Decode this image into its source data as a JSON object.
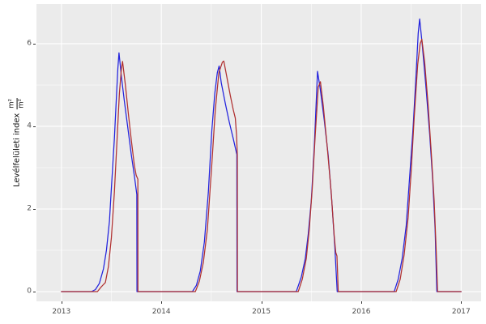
{
  "figure": {
    "background": "#ffffff",
    "panel_background": "#ebebeb",
    "grid_color": "#ffffff",
    "tick_color": "#333333",
    "axis_text_color": "#4d4d4d"
  },
  "y_axis": {
    "label_text": "Levélfelületi index",
    "unit_fraction": {
      "numerator": "m²",
      "denominator": "m²"
    }
  },
  "chart_data": {
    "type": "line",
    "title": "",
    "xlabel": "",
    "ylabel": "Levélfelületi index (m²/m²)",
    "x_unit": "year (decimal)",
    "xlim": [
      2012.75,
      2017.2
    ],
    "ylim": [
      -0.235,
      6.96
    ],
    "grid": true,
    "legend": "none",
    "xticks": [
      {
        "value": 2013,
        "label": "2013"
      },
      {
        "value": 2014,
        "label": "2014"
      },
      {
        "value": 2015,
        "label": "2015"
      },
      {
        "value": 2016,
        "label": "2016"
      },
      {
        "value": 2017,
        "label": "2017"
      }
    ],
    "x_minor": [
      2013.5,
      2014.5,
      2015.5,
      2016.5
    ],
    "yticks": [
      {
        "value": 0,
        "label": "0"
      },
      {
        "value": 2,
        "label": "2"
      },
      {
        "value": 4,
        "label": "4"
      },
      {
        "value": 6,
        "label": "6"
      }
    ],
    "y_minor": [
      1,
      3,
      5
    ],
    "series": [
      {
        "name": "blue-line",
        "color": "#2222dd",
        "points": [
          [
            2013.0,
            0
          ],
          [
            2013.3,
            0
          ],
          [
            2013.34,
            0.05
          ],
          [
            2013.38,
            0.2
          ],
          [
            2013.42,
            0.55
          ],
          [
            2013.45,
            1.0
          ],
          [
            2013.48,
            1.7
          ],
          [
            2013.505,
            2.7
          ],
          [
            2013.53,
            3.7
          ],
          [
            2013.55,
            4.7
          ],
          [
            2013.565,
            5.4
          ],
          [
            2013.576,
            5.78
          ],
          [
            2013.6,
            5.2
          ],
          [
            2013.63,
            4.6
          ],
          [
            2013.665,
            3.95
          ],
          [
            2013.7,
            3.3
          ],
          [
            2013.73,
            2.8
          ],
          [
            2013.754,
            2.35
          ],
          [
            2013.756,
            0
          ],
          [
            2014.31,
            0
          ],
          [
            2014.35,
            0.15
          ],
          [
            2014.39,
            0.5
          ],
          [
            2014.43,
            1.2
          ],
          [
            2014.47,
            2.4
          ],
          [
            2014.505,
            3.9
          ],
          [
            2014.535,
            4.8
          ],
          [
            2014.56,
            5.3
          ],
          [
            2014.578,
            5.46
          ],
          [
            2014.6,
            5.05
          ],
          [
            2014.64,
            4.55
          ],
          [
            2014.68,
            4.1
          ],
          [
            2014.72,
            3.7
          ],
          [
            2014.755,
            3.32
          ],
          [
            2014.757,
            0
          ],
          [
            2015.35,
            0
          ],
          [
            2015.4,
            0.35
          ],
          [
            2015.44,
            0.8
          ],
          [
            2015.47,
            1.4
          ],
          [
            2015.5,
            2.2
          ],
          [
            2015.53,
            3.5
          ],
          [
            2015.55,
            4.6
          ],
          [
            2015.563,
            5.33
          ],
          [
            2015.59,
            4.9
          ],
          [
            2015.63,
            4.15
          ],
          [
            2015.67,
            3.3
          ],
          [
            2015.705,
            2.2
          ],
          [
            2015.735,
            1.1
          ],
          [
            2015.76,
            0
          ],
          [
            2016.33,
            0
          ],
          [
            2016.37,
            0.3
          ],
          [
            2016.41,
            0.8
          ],
          [
            2016.45,
            1.6
          ],
          [
            2016.485,
            2.8
          ],
          [
            2016.52,
            4.0
          ],
          [
            2016.55,
            5.3
          ],
          [
            2016.57,
            6.25
          ],
          [
            2016.585,
            6.6
          ],
          [
            2016.61,
            6.0
          ],
          [
            2016.65,
            4.9
          ],
          [
            2016.685,
            3.8
          ],
          [
            2016.715,
            2.7
          ],
          [
            2016.74,
            1.5
          ],
          [
            2016.757,
            0
          ],
          [
            2017.0,
            0
          ]
        ]
      },
      {
        "name": "red-line",
        "color": "#b03030",
        "points": [
          [
            2013.0,
            0
          ],
          [
            2013.36,
            0
          ],
          [
            2013.4,
            0.12
          ],
          [
            2013.44,
            0.22
          ],
          [
            2013.47,
            0.6
          ],
          [
            2013.5,
            1.3
          ],
          [
            2013.53,
            2.4
          ],
          [
            2013.555,
            3.6
          ],
          [
            2013.58,
            4.8
          ],
          [
            2013.6,
            5.4
          ],
          [
            2013.612,
            5.57
          ],
          [
            2013.64,
            5.0
          ],
          [
            2013.67,
            4.3
          ],
          [
            2013.7,
            3.65
          ],
          [
            2013.73,
            3.05
          ],
          [
            2013.748,
            2.82
          ],
          [
            2013.765,
            2.72
          ],
          [
            2013.766,
            0
          ],
          [
            2014.34,
            0
          ],
          [
            2014.38,
            0.25
          ],
          [
            2014.42,
            0.7
          ],
          [
            2014.46,
            1.5
          ],
          [
            2014.5,
            2.9
          ],
          [
            2014.54,
            4.4
          ],
          [
            2014.575,
            5.3
          ],
          [
            2014.61,
            5.55
          ],
          [
            2014.625,
            5.58
          ],
          [
            2014.655,
            5.2
          ],
          [
            2014.69,
            4.75
          ],
          [
            2014.72,
            4.4
          ],
          [
            2014.74,
            4.2
          ],
          [
            2014.752,
            3.8
          ],
          [
            2014.76,
            3.3
          ],
          [
            2014.761,
            0
          ],
          [
            2015.37,
            0
          ],
          [
            2015.41,
            0.3
          ],
          [
            2015.45,
            0.8
          ],
          [
            2015.48,
            1.5
          ],
          [
            2015.51,
            2.5
          ],
          [
            2015.54,
            3.8
          ],
          [
            2015.57,
            4.95
          ],
          [
            2015.592,
            5.08
          ],
          [
            2015.62,
            4.5
          ],
          [
            2015.66,
            3.5
          ],
          [
            2015.7,
            2.4
          ],
          [
            2015.73,
            1.35
          ],
          [
            2015.745,
            0.95
          ],
          [
            2015.757,
            0.86
          ],
          [
            2015.77,
            0
          ],
          [
            2016.35,
            0
          ],
          [
            2016.39,
            0.3
          ],
          [
            2016.43,
            0.9
          ],
          [
            2016.47,
            1.8
          ],
          [
            2016.5,
            2.9
          ],
          [
            2016.53,
            4.2
          ],
          [
            2016.565,
            5.5
          ],
          [
            2016.59,
            6.0
          ],
          [
            2016.607,
            6.11
          ],
          [
            2016.635,
            5.55
          ],
          [
            2016.67,
            4.5
          ],
          [
            2016.7,
            3.4
          ],
          [
            2016.73,
            2.2
          ],
          [
            2016.75,
            1.0
          ],
          [
            2016.764,
            0
          ],
          [
            2017.0,
            0
          ]
        ]
      }
    ]
  }
}
